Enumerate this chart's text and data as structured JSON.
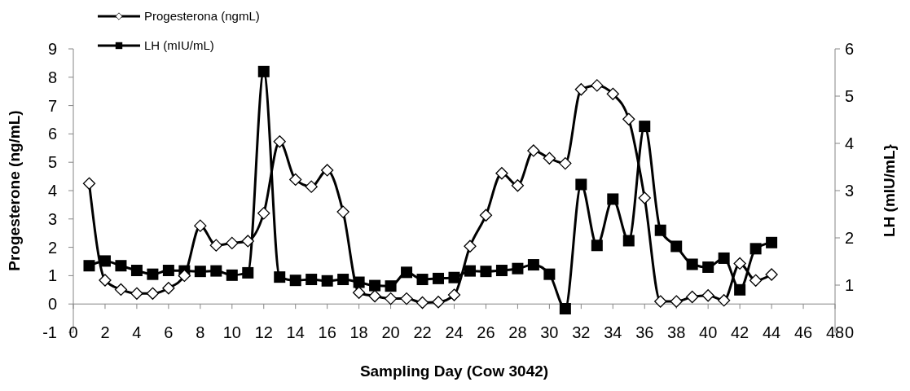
{
  "chart_data": {
    "type": "line",
    "xlabel": "Sampling Day (Cow 3042)",
    "ylabel": "Progesterone (ng/mL)",
    "y2label": "LH (mIU/mL}",
    "x": [
      1,
      2,
      3,
      4,
      5,
      6,
      7,
      8,
      9,
      10,
      11,
      12,
      13,
      14,
      15,
      16,
      17,
      18,
      19,
      20,
      21,
      22,
      23,
      24,
      25,
      26,
      27,
      28,
      29,
      30,
      31,
      32,
      33,
      34,
      35,
      36,
      37,
      38,
      39,
      40,
      41,
      42,
      43,
      44
    ],
    "series": [
      {
        "name": "Progesterona (ngmL)",
        "color": "#000000",
        "marker": "diamond",
        "values": [
          4.25,
          0.84,
          0.51,
          0.37,
          0.37,
          0.56,
          1.0,
          2.76,
          2.07,
          2.15,
          2.22,
          3.2,
          5.73,
          4.39,
          4.14,
          4.72,
          3.25,
          0.4,
          0.28,
          0.19,
          0.19,
          0.05,
          0.07,
          0.32,
          2.04,
          3.13,
          4.61,
          4.18,
          5.41,
          5.14,
          4.96,
          7.57,
          7.71,
          7.41,
          6.52,
          3.74,
          0.09,
          0.09,
          0.25,
          0.3,
          0.13,
          1.43,
          0.83,
          1.04
        ]
      },
      {
        "name": "LH (mIU/mL)",
        "color": "#000000",
        "marker": "square",
        "axis": "y2",
        "values": [
          1.41,
          1.51,
          1.41,
          1.31,
          1.23,
          1.31,
          1.3,
          1.29,
          1.3,
          1.21,
          1.26,
          5.52,
          1.17,
          1.1,
          1.12,
          1.09,
          1.12,
          1.06,
          0.99,
          0.98,
          1.27,
          1.12,
          1.14,
          1.16,
          1.3,
          1.29,
          1.31,
          1.35,
          1.43,
          1.23,
          0.5,
          3.13,
          1.84,
          2.82,
          1.94,
          4.36,
          2.16,
          1.82,
          1.44,
          1.38,
          1.57,
          0.9,
          1.77,
          1.9
        ]
      }
    ],
    "xlim": [
      0,
      48
    ],
    "xticks": [
      0,
      2,
      4,
      6,
      8,
      10,
      12,
      14,
      16,
      18,
      20,
      22,
      24,
      26,
      28,
      30,
      32,
      34,
      36,
      38,
      40,
      42,
      44,
      46,
      48
    ],
    "ylim": [
      -1,
      9
    ],
    "yticks": [
      -1,
      0,
      1,
      2,
      3,
      4,
      5,
      6,
      7,
      8,
      9
    ],
    "y2lim": [
      0,
      6
    ],
    "y2ticks": [
      0,
      1,
      2,
      3,
      4,
      5,
      6
    ],
    "grid": false,
    "legend": "top left",
    "line_style": "solid"
  }
}
